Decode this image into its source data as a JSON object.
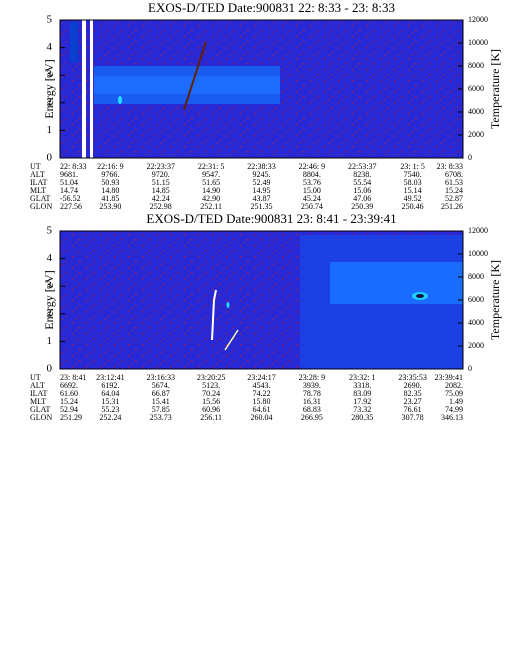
{
  "chart_data": [
    {
      "type": "spectrogram",
      "title": "EXOS-D/TED   Date:900831  22: 8:33 - 23: 8:33",
      "ylabel": "Energy [eV]",
      "y2label": "Temperature [K]",
      "ylim": [
        0,
        5
      ],
      "yticks": [
        0,
        1,
        2,
        3,
        4,
        5
      ],
      "y2lim": [
        0,
        12000
      ],
      "y2ticks": [
        0,
        2000,
        4000,
        6000,
        8000,
        10000,
        12000
      ],
      "table": {
        "row_labels": [
          "UT",
          "ALT",
          "ILAT",
          "MLT",
          "GLAT",
          "GLON"
        ],
        "rows": [
          [
            "22: 8:33",
            "22:16: 9",
            "22:23:37",
            "22:31: 5",
            "22:38:33",
            "22:46: 9",
            "22:53:37",
            "23: 1: 5",
            "23: 8:33"
          ],
          [
            "9681.",
            "9766.",
            "9720.",
            "9547.",
            "9245.",
            "8804.",
            "8238.",
            "7540.",
            "6708."
          ],
          [
            "51.04",
            "50.93",
            "51.15",
            "51.65",
            "52.49",
            "53.76",
            "55.54",
            "58.03",
            "61.53"
          ],
          [
            "14.74",
            "14.80",
            "14.85",
            "14.90",
            "14.95",
            "15.00",
            "15.06",
            "15.14",
            "15.24"
          ],
          [
            "-56.52",
            "41.85",
            "42.24",
            "42.90",
            "43.87",
            "45.24",
            "47.06",
            "49.52",
            "52.87"
          ],
          [
            "227.56",
            "253.90",
            "252.98",
            "252.11",
            "251.35",
            "250.74",
            "250.39",
            "250.46",
            "251.26"
          ]
        ]
      }
    },
    {
      "type": "spectrogram",
      "title": "EXOS-D/TED   Date:900831  23: 8:41 - 23:39:41",
      "ylabel": "Energy [eV]",
      "y2label": "Temperature [K]",
      "ylim": [
        0,
        5
      ],
      "yticks": [
        0,
        1,
        2,
        3,
        4,
        5
      ],
      "y2lim": [
        0,
        12000
      ],
      "y2ticks": [
        0,
        2000,
        4000,
        6000,
        8000,
        10000,
        12000
      ],
      "table": {
        "row_labels": [
          "UT",
          "ALT",
          "ILAT",
          "MLT",
          "GLAT",
          "GLON"
        ],
        "rows": [
          [
            "23: 8:41",
            "23:12:41",
            "23:16:33",
            "23:20:25",
            "23:24:17",
            "23:28: 9",
            "23:32: 1",
            "23:35:53",
            "23:39:41"
          ],
          [
            "6692.",
            "6192.",
            "5674.",
            "5123.",
            "4543.",
            "3939.",
            "3318.",
            "2690.",
            "2082."
          ],
          [
            "61.60",
            "64.04",
            "66.87",
            "70.24",
            "74.22",
            "78.78",
            "83.09",
            "82.35",
            "75.09"
          ],
          [
            "15.24",
            "15.31",
            "15.41",
            "15.56",
            "15.80",
            "16.31",
            "17.92",
            "23.27",
            "1.49"
          ],
          [
            "52.94",
            "55.23",
            "57.85",
            "60.96",
            "64.61",
            "68.83",
            "73.32",
            "76.61",
            "74.99"
          ],
          [
            "251.29",
            "252.24",
            "253.73",
            "256.11",
            "260.04",
            "266.95",
            "280.35",
            "307.78",
            "346.13"
          ]
        ]
      }
    }
  ]
}
